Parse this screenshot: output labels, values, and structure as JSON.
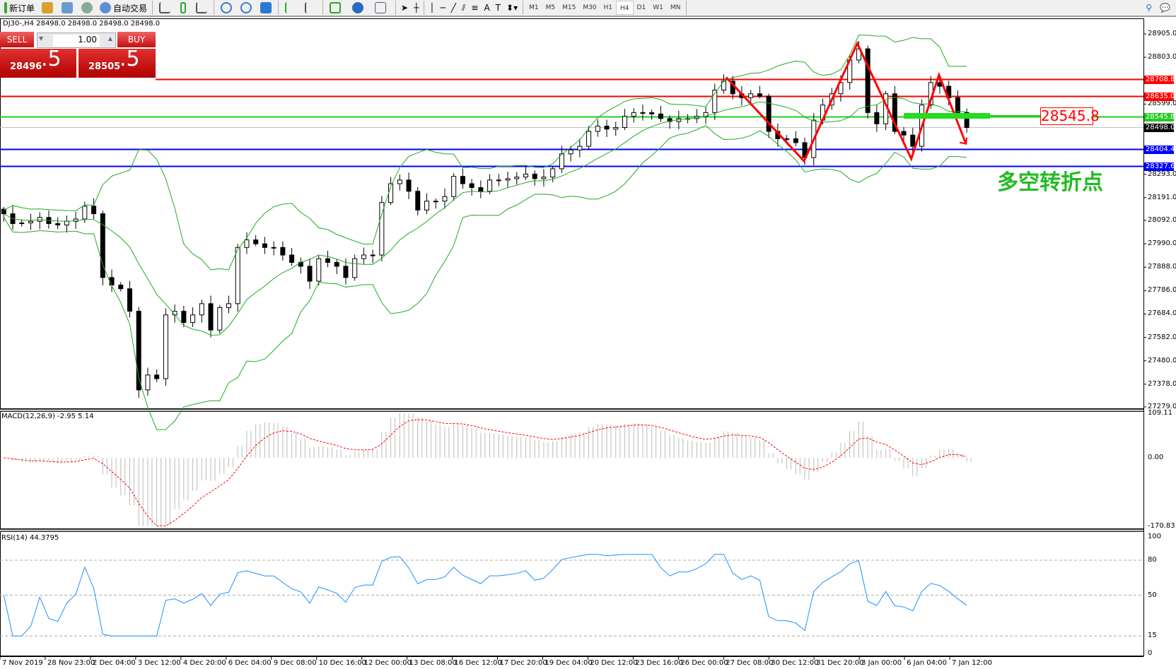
{
  "toolbar": {
    "new_order": "新订单",
    "auto_trading": "自动交易",
    "timeframes": [
      "M1",
      "M5",
      "M15",
      "M30",
      "H1",
      "H4",
      "D1",
      "W1",
      "MN"
    ],
    "active_timeframe": "H4"
  },
  "chart": {
    "symbol_info": "DJ30-,H4  28498.0 28498.0 28498.0 28498.0",
    "trade_panel": {
      "sell_label": "SELL",
      "buy_label": "BUY",
      "lot": "1.00",
      "sell_small": "28496",
      "sell_big": ".5",
      "buy_small": "28505",
      "buy_big": ".5"
    },
    "price_axis": [
      "28905.0",
      "28803.0",
      "28599.0",
      "28293.0",
      "28191.0",
      "28092.0",
      "27990.0",
      "27888.0",
      "27786.0",
      "27684.0",
      "27582.0",
      "27480.0",
      "27378.0",
      "27279.0"
    ],
    "levels": [
      {
        "price": "28708.8",
        "color": "#ff0000"
      },
      {
        "price": "28635.0",
        "color": "#ff0000"
      },
      {
        "price": "28545.8",
        "color": "#22cc22"
      },
      {
        "price": "28498.0",
        "color": "#000000"
      },
      {
        "price": "28404.4",
        "color": "#0000ff"
      },
      {
        "price": "28327.6",
        "color": "#0000ff"
      }
    ],
    "annotation_price": "28545.8",
    "annotation_text": "多空转折点",
    "closes": [
      28121,
      28078,
      28081,
      28088,
      28105,
      28078,
      28072,
      28088,
      28098,
      28154,
      28121,
      27843,
      27810,
      27794,
      27696,
      27353,
      27418,
      27402,
      27680,
      27696,
      27647,
      27680,
      27729,
      27614,
      27712,
      27729,
      27974,
      28007,
      27990,
      27974,
      27974,
      27941,
      27909,
      27892,
      27827,
      27925,
      27909,
      27892,
      27843,
      27925,
      27941,
      27941,
      28170,
      28252,
      28268,
      28219,
      28137,
      28176,
      28176,
      28196,
      28284,
      28252,
      28235,
      28219,
      28268,
      28268,
      28274,
      28281,
      28294,
      28274,
      28281,
      28317,
      28382,
      28399,
      28415,
      28480,
      28503,
      28490,
      28497,
      28546,
      28562,
      28562,
      28556,
      28536,
      28523,
      28536,
      28536,
      28546,
      28562,
      28660,
      28699,
      28644,
      28627,
      28644,
      28634,
      28480,
      28448,
      28448,
      28431,
      28366,
      28529,
      28595,
      28644,
      28693,
      28791,
      28840,
      28562,
      28513,
      28644,
      28480,
      28464,
      28415,
      28595,
      28693,
      28677,
      28627,
      28562,
      28497
    ]
  },
  "macd": {
    "label": "MACD(12,26,9) -2.95 5.14",
    "axis": [
      "109.11",
      "0.00",
      "-170.83"
    ]
  },
  "rsi": {
    "label": "RSI(14) 44.3795",
    "axis": [
      "100",
      "80",
      "50",
      "15",
      "0"
    ]
  },
  "time_axis": [
    "7 Nov 2019",
    "28 Nov 23:00",
    "2 Dec 04:00",
    "3 Dec 12:00",
    "4 Dec 20:00",
    "6 Dec 04:00",
    "9 Dec 08:00",
    "10 Dec 16:00",
    "12 Dec 00:00",
    "13 Dec 08:00",
    "16 Dec 12:00",
    "17 Dec 20:00",
    "19 Dec 04:00",
    "20 Dec 12:00",
    "23 Dec 16:00",
    "26 Dec 00:00",
    "27 Dec 08:00",
    "30 Dec 12:00",
    "31 Dec 20:00",
    "3 Jan 00:00",
    "6 Jan 04:00",
    "7 Jan 12:00"
  ],
  "colors": {
    "bands": "#22aa22",
    "macd_signal": "#ff0000",
    "rsi": "#1e90ff",
    "zigzag": "#ff0000"
  }
}
